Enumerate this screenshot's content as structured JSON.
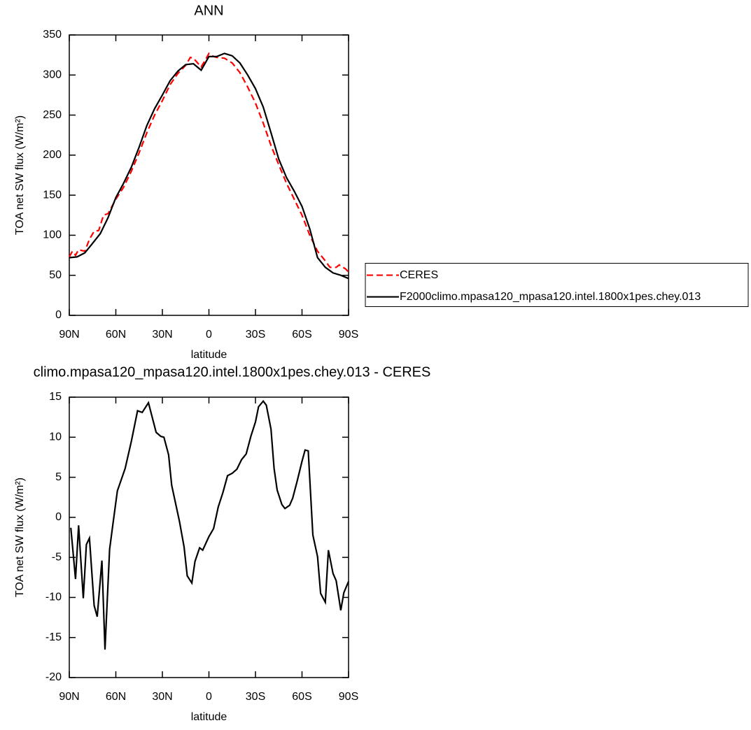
{
  "chart_data": [
    {
      "type": "line",
      "title": "ANN",
      "xlabel": "latitude",
      "ylabel": "TOA net SW flux (W/m²)",
      "xlim": [
        90,
        -90
      ],
      "xticks": [
        {
          "value": 90,
          "label": "90N"
        },
        {
          "value": 60,
          "label": "60N"
        },
        {
          "value": 30,
          "label": "30N"
        },
        0,
        {
          "value": -30,
          "label": "30S"
        },
        {
          "value": -60,
          "label": "60S"
        },
        {
          "value": -90,
          "label": "90S"
        }
      ],
      "ylim": [
        0,
        350
      ],
      "yticks": [
        0,
        50,
        100,
        150,
        200,
        250,
        300,
        350
      ],
      "legend": "right",
      "series": [
        {
          "name": "CERES",
          "color": "#ff0000",
          "linestyle": "dashed",
          "x": [
            90,
            88,
            86,
            84,
            80,
            77,
            74,
            71,
            68,
            65,
            60,
            55,
            50,
            45,
            40,
            35,
            30,
            25,
            20,
            15,
            12,
            10,
            5,
            2,
            0,
            -3,
            -5,
            -10,
            -15,
            -20,
            -25,
            -30,
            -35,
            -40,
            -45,
            -50,
            -55,
            -60,
            -65,
            -70,
            -75,
            -78,
            -82,
            -84,
            -88,
            -90
          ],
          "values": [
            73,
            80,
            75,
            82,
            80,
            95,
            105,
            106,
            125,
            127,
            145,
            160,
            180,
            203,
            228,
            250,
            268,
            288,
            302,
            312,
            322,
            321,
            310,
            320,
            327,
            323,
            322,
            321,
            315,
            303,
            285,
            265,
            240,
            212,
            188,
            165,
            145,
            125,
            100,
            80,
            68,
            60,
            60,
            63,
            58,
            54
          ]
        },
        {
          "name": "F2000climo.mpasa120_mpasa120.intel.1800x1pes.chey.013",
          "color": "#000000",
          "linestyle": "solid",
          "x": [
            90,
            85,
            80,
            75,
            70,
            65,
            60,
            55,
            50,
            45,
            40,
            35,
            30,
            25,
            20,
            15,
            10,
            5,
            0,
            -5,
            -10,
            -15,
            -20,
            -25,
            -30,
            -35,
            -40,
            -45,
            -50,
            -55,
            -60,
            -65,
            -70,
            -75,
            -80,
            -85,
            -90
          ],
          "values": [
            72,
            73,
            78,
            90,
            102,
            122,
            147,
            165,
            185,
            210,
            237,
            258,
            275,
            293,
            305,
            313,
            314,
            306,
            323,
            323,
            327,
            324,
            315,
            300,
            283,
            260,
            228,
            195,
            172,
            155,
            136,
            108,
            72,
            60,
            53,
            50,
            46
          ]
        }
      ]
    },
    {
      "type": "line",
      "title": "climo.mpasa120_mpasa120.intel.1800x1pes.chey.013 - CERES",
      "xlabel": "latitude",
      "ylabel": "TOA net SW flux (W/m²)",
      "xlim": [
        90,
        -90
      ],
      "xticks": [
        {
          "value": 90,
          "label": "90N"
        },
        {
          "value": 60,
          "label": "60N"
        },
        {
          "value": 30,
          "label": "30N"
        },
        0,
        {
          "value": -30,
          "label": "30S"
        },
        {
          "value": -60,
          "label": "60S"
        },
        {
          "value": -90,
          "label": "90S"
        }
      ],
      "ylim": [
        -20,
        15
      ],
      "yticks": [
        -20,
        -15,
        -10,
        -5,
        0,
        5,
        10,
        15
      ],
      "series": [
        {
          "color": "#000000",
          "linestyle": "solid",
          "x": [
            89,
            86,
            84,
            81,
            79,
            77,
            74,
            72,
            69,
            67,
            64,
            62,
            59,
            54,
            50,
            46,
            43,
            39,
            34,
            31,
            29,
            26,
            24,
            19,
            16,
            14,
            11,
            9,
            6,
            4,
            0,
            -3,
            -6,
            -9,
            -12,
            -15,
            -18,
            -21,
            -24,
            -27,
            -30,
            -32,
            -35,
            -37,
            -40,
            -42,
            -44,
            -47,
            -49,
            -52,
            -54,
            -57,
            -60,
            -62,
            -64,
            -67,
            -70,
            -72,
            -75,
            -77,
            -80,
            -82,
            -85,
            -87,
            -90
          ],
          "values": [
            -1.3,
            -7.7,
            -1,
            -10.1,
            -3.4,
            -2.6,
            -11,
            -12.4,
            -5.4,
            -16.5,
            -4,
            -1,
            3.3,
            6.1,
            9.5,
            13.3,
            13.1,
            14.3,
            10.6,
            10.1,
            10,
            7.8,
            4,
            -0.5,
            -3.7,
            -7.3,
            -8.2,
            -5.5,
            -3.8,
            -4.1,
            -2.4,
            -1.4,
            1.3,
            3.1,
            5.2,
            5.5,
            6,
            7.2,
            7.9,
            10.1,
            11.9,
            13.8,
            14.5,
            14,
            11,
            6.1,
            3.4,
            1.6,
            1.1,
            1.5,
            2.4,
            4.6,
            7,
            8.4,
            8.3,
            -2.2,
            -4.9,
            -9.5,
            -10.6,
            -4.1,
            -7,
            -7.9,
            -11.6,
            -9.4,
            -8
          ]
        }
      ]
    }
  ]
}
